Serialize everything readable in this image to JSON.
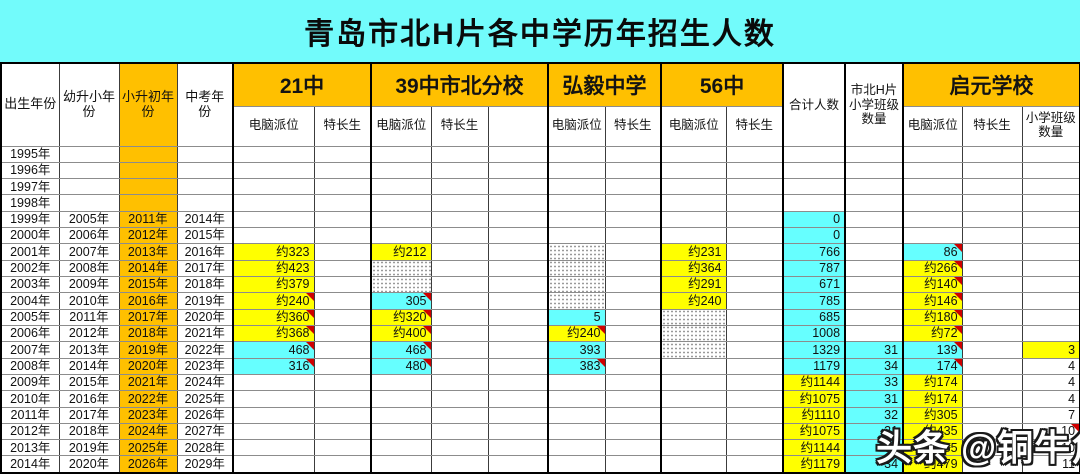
{
  "title": "青岛市北H片各中学历年招生人数",
  "watermark": "头条 @铜牛角",
  "colors": {
    "title_bg": "#72fbfb",
    "header_orange": "#ffc000",
    "cell_yellow": "#ffff00",
    "cell_cyan": "#66ffff",
    "comment_triangle": "#cf0000"
  },
  "table": {
    "left_headers": [
      "出生年份",
      "幼升小年份",
      "小升初年份",
      "中考年份"
    ],
    "groups": [
      {
        "name": "21中",
        "cols": [
          "电脑派位",
          "特长生"
        ]
      },
      {
        "name": "39中市北分校",
        "cols": [
          "电脑派位",
          "特长生",
          ""
        ]
      },
      {
        "name": "弘毅中学",
        "cols": [
          "电脑派位",
          "特长生"
        ]
      },
      {
        "name": "56中",
        "cols": [
          "电脑派位",
          "特长生"
        ]
      }
    ],
    "totals_header": "合计人数",
    "classes_header": "市北H片小学班级数量",
    "qiyuan": {
      "name": "启元学校",
      "cols": [
        "电脑派位",
        "特长生",
        "小学班级数量"
      ]
    },
    "col_keys": [
      "s21_pc",
      "s21_tc",
      "s39_pc",
      "s39_tc",
      "s39_x",
      "hy_pc",
      "hy_tc",
      "s56_pc",
      "s56_tc",
      "total",
      "classes",
      "qy_pc",
      "qy_tc",
      "qy_cls"
    ],
    "rows": [
      {
        "years": [
          "1995年",
          "",
          "",
          ""
        ],
        "cells": {}
      },
      {
        "years": [
          "1996年",
          "",
          "",
          ""
        ],
        "cells": {}
      },
      {
        "years": [
          "1997年",
          "",
          "",
          ""
        ],
        "cells": {}
      },
      {
        "years": [
          "1998年",
          "",
          "",
          ""
        ],
        "cells": {}
      },
      {
        "years": [
          "1999年",
          "2005年",
          "2011年",
          "2014年"
        ],
        "cells": {
          "total": {
            "v": "0",
            "bg": "c"
          }
        }
      },
      {
        "years": [
          "2000年",
          "2006年",
          "2012年",
          "2015年"
        ],
        "cells": {
          "total": {
            "v": "0",
            "bg": "c"
          }
        }
      },
      {
        "years": [
          "2001年",
          "2007年",
          "2013年",
          "2016年"
        ],
        "cells": {
          "s21_pc": {
            "v": "约323",
            "bg": "y"
          },
          "s39_pc": {
            "v": "约212",
            "bg": "y"
          },
          "hy_pc": {
            "dot": true
          },
          "s56_pc": {
            "v": "约231",
            "bg": "y"
          },
          "total": {
            "v": "766",
            "bg": "c"
          },
          "qy_pc": {
            "v": "86",
            "bg": "c",
            "tri": true
          }
        }
      },
      {
        "years": [
          "2002年",
          "2008年",
          "2014年",
          "2017年"
        ],
        "cells": {
          "s21_pc": {
            "v": "约423",
            "bg": "y"
          },
          "s39_pc": {
            "dot": true
          },
          "hy_pc": {
            "dot": true
          },
          "s56_pc": {
            "v": "约364",
            "bg": "y"
          },
          "total": {
            "v": "787",
            "bg": "c"
          },
          "qy_pc": {
            "v": "约266",
            "bg": "y",
            "tri": true
          }
        }
      },
      {
        "years": [
          "2003年",
          "2009年",
          "2015年",
          "2018年"
        ],
        "cells": {
          "s21_pc": {
            "v": "约379",
            "bg": "y"
          },
          "s39_pc": {
            "dot": true
          },
          "hy_pc": {
            "dot": true
          },
          "s56_pc": {
            "v": "约291",
            "bg": "y"
          },
          "total": {
            "v": "671",
            "bg": "c"
          },
          "qy_pc": {
            "v": "约140",
            "bg": "y",
            "tri": true
          }
        }
      },
      {
        "years": [
          "2004年",
          "2010年",
          "2016年",
          "2019年"
        ],
        "cells": {
          "s21_pc": {
            "v": "约240",
            "bg": "y",
            "tri": true
          },
          "s39_pc": {
            "v": "305",
            "bg": "c",
            "tri": true
          },
          "hy_pc": {
            "dot": true
          },
          "s56_pc": {
            "v": "约240",
            "bg": "y"
          },
          "total": {
            "v": "785",
            "bg": "c"
          },
          "qy_pc": {
            "v": "约146",
            "bg": "y",
            "tri": true
          }
        }
      },
      {
        "years": [
          "2005年",
          "2011年",
          "2017年",
          "2020年"
        ],
        "cells": {
          "s21_pc": {
            "v": "约360",
            "bg": "y",
            "tri": true
          },
          "s39_pc": {
            "v": "约320",
            "bg": "y",
            "tri": true
          },
          "hy_pc": {
            "v": "5",
            "bg": "c"
          },
          "s56_pc": {
            "dot": true
          },
          "total": {
            "v": "685",
            "bg": "c"
          },
          "qy_pc": {
            "v": "约180",
            "bg": "y",
            "tri": true
          }
        }
      },
      {
        "years": [
          "2006年",
          "2012年",
          "2018年",
          "2021年"
        ],
        "cells": {
          "s21_pc": {
            "v": "约368",
            "bg": "y",
            "tri": true
          },
          "s39_pc": {
            "v": "约400",
            "bg": "y",
            "tri": true
          },
          "hy_pc": {
            "v": "约240",
            "bg": "y",
            "tri": true
          },
          "s56_pc": {
            "dot": true
          },
          "total": {
            "v": "1008",
            "bg": "c"
          },
          "qy_pc": {
            "v": "约72",
            "bg": "y",
            "tri": true
          }
        }
      },
      {
        "years": [
          "2007年",
          "2013年",
          "2019年",
          "2022年"
        ],
        "cells": {
          "s21_pc": {
            "v": "468",
            "bg": "c",
            "tri": true
          },
          "s39_pc": {
            "v": "468",
            "bg": "c",
            "tri": true
          },
          "hy_pc": {
            "v": "393",
            "bg": "c"
          },
          "s56_pc": {
            "dot": true
          },
          "total": {
            "v": "1329",
            "bg": "c"
          },
          "classes": {
            "v": "31",
            "bg": "c"
          },
          "qy_pc": {
            "v": "139",
            "bg": "c",
            "tri": true
          },
          "qy_cls": {
            "v": "3",
            "bg": "y"
          }
        }
      },
      {
        "years": [
          "2008年",
          "2014年",
          "2020年",
          "2023年"
        ],
        "cells": {
          "s21_pc": {
            "v": "316",
            "bg": "c",
            "tri": true
          },
          "s39_pc": {
            "v": "480",
            "bg": "c",
            "tri": true
          },
          "hy_pc": {
            "v": "383",
            "bg": "c",
            "tri": true
          },
          "total": {
            "v": "1179",
            "bg": "c"
          },
          "classes": {
            "v": "34",
            "bg": "c"
          },
          "qy_pc": {
            "v": "174",
            "bg": "c",
            "tri": true
          },
          "qy_cls": {
            "v": "4"
          }
        }
      },
      {
        "years": [
          "2009年",
          "2015年",
          "2021年",
          "2024年"
        ],
        "cells": {
          "total": {
            "v": "约1144",
            "bg": "y"
          },
          "classes": {
            "v": "33",
            "bg": "c"
          },
          "qy_pc": {
            "v": "约174",
            "bg": "y"
          },
          "qy_cls": {
            "v": "4"
          }
        }
      },
      {
        "years": [
          "2010年",
          "2016年",
          "2022年",
          "2025年"
        ],
        "cells": {
          "total": {
            "v": "约1075",
            "bg": "y"
          },
          "classes": {
            "v": "31",
            "bg": "c"
          },
          "qy_pc": {
            "v": "约174",
            "bg": "y"
          },
          "qy_cls": {
            "v": "4"
          }
        }
      },
      {
        "years": [
          "2011年",
          "2017年",
          "2023年",
          "2026年"
        ],
        "cells": {
          "total": {
            "v": "约1110",
            "bg": "y"
          },
          "classes": {
            "v": "32",
            "bg": "c"
          },
          "qy_pc": {
            "v": "约305",
            "bg": "y"
          },
          "qy_cls": {
            "v": "7"
          }
        }
      },
      {
        "years": [
          "2012年",
          "2018年",
          "2024年",
          "2027年"
        ],
        "cells": {
          "total": {
            "v": "约1075",
            "bg": "y"
          },
          "classes": {
            "v": "31",
            "bg": "c"
          },
          "qy_pc": {
            "v": "约435",
            "bg": "y"
          },
          "qy_cls": {
            "v": "10",
            "tri": true
          }
        }
      },
      {
        "years": [
          "2013年",
          "2019年",
          "2025年",
          "2028年"
        ],
        "cells": {
          "total": {
            "v": "约1144",
            "bg": "y"
          },
          "classes": {
            "v": "33",
            "bg": "c"
          },
          "qy_pc": {
            "v": "约385",
            "bg": "y"
          },
          "qy_cls": {
            "v": "10"
          }
        }
      },
      {
        "years": [
          "2014年",
          "2020年",
          "2026年",
          "2029年"
        ],
        "cells": {
          "total": {
            "v": "约1179",
            "bg": "y"
          },
          "classes": {
            "v": "34",
            "bg": "c"
          },
          "qy_pc": {
            "v": "约479",
            "bg": "y"
          },
          "qy_cls": {
            "v": "11"
          }
        }
      }
    ]
  }
}
